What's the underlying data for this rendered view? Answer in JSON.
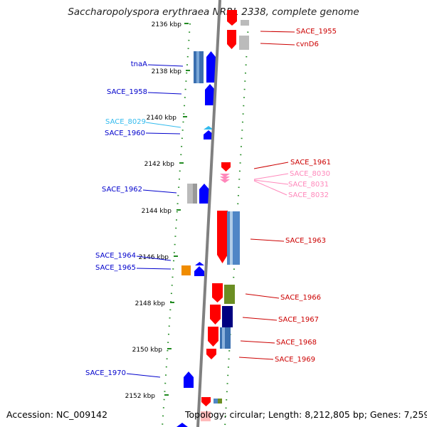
{
  "title": "Saccharopolyspora erythraea NRRL 2338, complete genome",
  "footer": {
    "accession": "Accession: NC_009142",
    "topology": "Topology: circular; Length: 8,212,805 bp; Genes: 7,259"
  },
  "colors": {
    "forward_gene": "#0000ff",
    "reverse_gene": "#ff0000",
    "tick": "#228b22",
    "backbone": "#808080",
    "rna_forward": "#33bbee",
    "rna_reverse": "#ff88bb"
  },
  "ticks": [
    "2136 kbp",
    "2138 kbp",
    "2140 kbp",
    "2142 kbp",
    "2144 kbp",
    "2146 kbp",
    "2148 kbp",
    "2150 kbp",
    "2152 kbp"
  ],
  "labels_left": [
    "tnaA",
    "SACE_1958",
    "SACE_8029",
    "SACE_1960",
    "SACE_1962",
    "SACE_1964",
    "SACE_1965",
    "SACE_1970"
  ],
  "labels_right": [
    "SACE_1955",
    "cvnD6",
    "SACE_1961",
    "SACE_8030",
    "SACE_8031",
    "SACE_8032",
    "SACE_1963",
    "SACE_1966",
    "SACE_1967",
    "SACE_1968",
    "SACE_1969"
  ]
}
